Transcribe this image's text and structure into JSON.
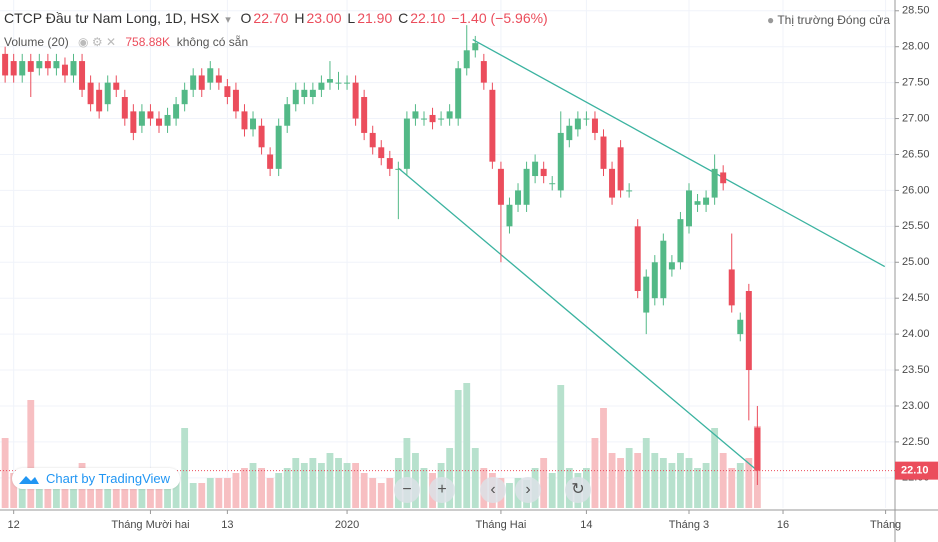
{
  "chart_data": {
    "type": "candlestick",
    "title": "CTCP Đầu tư Nam Long, 1D, HSX",
    "ohlc_legend": [
      {
        "key": "O",
        "value": "22.70"
      },
      {
        "key": "H",
        "value": "23.00"
      },
      {
        "key": "L",
        "value": "21.90"
      },
      {
        "key": "C",
        "value": "22.10"
      }
    ],
    "change_label": "−1.40 (−5.96%)",
    "volume_title": "Volume (20)",
    "volume_label": "758.88K",
    "volume_ma_label": "không có sẵn",
    "market_status": "Thị trường Đóng cửa",
    "last_price_label": "22.10",
    "branding": "Chart by TradingView",
    "up_color": "#53b987",
    "down_color": "#eb4d5c",
    "volume_up_color": "#b7e1cd",
    "volume_down_color": "#f7bfc2",
    "trendline_color": "#3bb3a0",
    "grid": true,
    "xlim": [
      -0.6,
      104.1
    ],
    "xticks": [
      {
        "value": 1,
        "label": "12"
      },
      {
        "value": 17,
        "label": "Tháng Mười hai"
      },
      {
        "value": 26,
        "label": "13"
      },
      {
        "value": 40,
        "label": "2020"
      },
      {
        "value": 58,
        "label": "Tháng Hai"
      },
      {
        "value": 68,
        "label": "14"
      },
      {
        "value": 80,
        "label": "Tháng 3"
      },
      {
        "value": 91,
        "label": "16"
      },
      {
        "value": 103,
        "label": "Tháng"
      }
    ],
    "ylim": [
      21.58,
      28.65
    ],
    "yticks": [
      {
        "value": 22,
        "label": "22.00"
      },
      {
        "value": 22.5,
        "label": "22.50"
      },
      {
        "value": 23,
        "label": "23.00"
      },
      {
        "value": 23.5,
        "label": "23.50"
      },
      {
        "value": 24,
        "label": "24.00"
      },
      {
        "value": 24.5,
        "label": "24.50"
      },
      {
        "value": 25,
        "label": "25.00"
      },
      {
        "value": 25.5,
        "label": "25.50"
      },
      {
        "value": 26,
        "label": "26.00"
      },
      {
        "value": 26.5,
        "label": "26.50"
      },
      {
        "value": 27,
        "label": "27.00"
      },
      {
        "value": 27.5,
        "label": "27.50"
      },
      {
        "value": 28,
        "label": "28.00"
      },
      {
        "value": 28.5,
        "label": "28.50"
      }
    ],
    "open": [
      27.9,
      27.8,
      27.6,
      27.8,
      27.7,
      27.8,
      27.7,
      27.75,
      27.6,
      27.8,
      27.5,
      27.4,
      27.2,
      27.5,
      27.3,
      27.1,
      26.9,
      27.1,
      27.0,
      26.9,
      27.0,
      27.2,
      27.4,
      27.6,
      27.5,
      27.6,
      27.45,
      27.4,
      27.1,
      26.85,
      26.9,
      26.5,
      26.3,
      26.9,
      27.2,
      27.3,
      27.3,
      27.4,
      27.5,
      27.5,
      27.5,
      27.5,
      27.3,
      26.8,
      26.6,
      26.45,
      26.3,
      26.3,
      27.0,
      27.0,
      27.05,
      27.0,
      27.0,
      27.0,
      27.7,
      27.95,
      27.8,
      27.4,
      26.3,
      25.5,
      25.8,
      25.8,
      26.2,
      26.3,
      26.1,
      26.0,
      26.7,
      26.85,
      27.0,
      27.0,
      26.75,
      26.3,
      26.6,
      26.0,
      25.5,
      24.3,
      24.5,
      24.5,
      24.9,
      25.0,
      25.5,
      25.8,
      25.8,
      25.9,
      26.25,
      24.9,
      24.0,
      24.6,
      22.7
    ],
    "high": [
      28.0,
      27.9,
      27.9,
      27.9,
      27.9,
      27.9,
      27.9,
      27.85,
      27.9,
      27.9,
      27.6,
      27.5,
      27.6,
      27.6,
      27.4,
      27.2,
      27.2,
      27.2,
      27.1,
      27.15,
      27.3,
      27.5,
      27.7,
      27.7,
      27.8,
      27.7,
      27.55,
      27.5,
      27.2,
      27.1,
      27.0,
      26.6,
      27.0,
      27.3,
      27.5,
      27.5,
      27.5,
      27.6,
      27.8,
      27.65,
      27.6,
      27.6,
      27.4,
      26.9,
      26.7,
      26.55,
      26.4,
      27.1,
      27.2,
      27.1,
      27.15,
      27.1,
      27.2,
      27.8,
      28.3,
      28.15,
      27.9,
      27.5,
      26.4,
      25.9,
      26.1,
      26.4,
      26.5,
      26.4,
      26.2,
      27.1,
      27.0,
      27.1,
      27.1,
      27.1,
      26.85,
      26.4,
      26.7,
      26.1,
      25.6,
      24.9,
      25.1,
      25.4,
      25.1,
      25.7,
      26.1,
      25.95,
      26.0,
      26.5,
      26.35,
      25.4,
      24.3,
      24.7,
      23.0
    ],
    "low": [
      27.5,
      27.5,
      27.5,
      27.3,
      27.6,
      27.6,
      27.6,
      27.5,
      27.5,
      27.3,
      27.1,
      27.0,
      27.1,
      27.3,
      26.9,
      26.7,
      26.8,
      26.9,
      26.8,
      26.8,
      26.9,
      27.1,
      27.3,
      27.3,
      27.4,
      27.4,
      27.2,
      27.0,
      26.75,
      26.75,
      26.5,
      26.2,
      26.2,
      26.8,
      27.1,
      27.2,
      27.2,
      27.3,
      27.4,
      27.4,
      27.4,
      26.9,
      26.7,
      26.5,
      26.35,
      26.2,
      25.6,
      26.2,
      26.9,
      26.9,
      26.85,
      26.9,
      26.9,
      26.9,
      27.6,
      27.85,
      27.4,
      26.3,
      25.0,
      25.4,
      25.7,
      25.7,
      26.1,
      26.1,
      26.0,
      25.9,
      26.6,
      26.75,
      26.9,
      26.7,
      26.2,
      25.8,
      25.9,
      25.9,
      24.5,
      24.0,
      24.4,
      24.4,
      24.8,
      24.9,
      25.4,
      25.7,
      25.7,
      25.8,
      26.0,
      24.3,
      23.9,
      22.8,
      21.9
    ],
    "close": [
      27.6,
      27.6,
      27.8,
      27.65,
      27.8,
      27.7,
      27.8,
      27.6,
      27.8,
      27.4,
      27.2,
      27.1,
      27.5,
      27.4,
      27.0,
      26.8,
      27.1,
      27.0,
      26.9,
      27.05,
      27.2,
      27.4,
      27.6,
      27.4,
      27.7,
      27.5,
      27.3,
      27.1,
      26.85,
      27.0,
      26.6,
      26.3,
      26.9,
      27.2,
      27.4,
      27.4,
      27.4,
      27.5,
      27.55,
      27.5,
      27.5,
      27.0,
      26.8,
      26.6,
      26.45,
      26.3,
      26.3,
      27.0,
      27.1,
      27.0,
      26.95,
      27.0,
      27.1,
      27.7,
      27.95,
      28.05,
      27.5,
      26.4,
      25.8,
      25.8,
      26.0,
      26.3,
      26.4,
      26.2,
      26.1,
      26.8,
      26.9,
      27.0,
      27.0,
      26.8,
      26.3,
      25.9,
      26.0,
      26.0,
      24.6,
      24.8,
      25.0,
      25.3,
      25.0,
      25.6,
      26.0,
      25.85,
      25.9,
      26.3,
      26.1,
      24.4,
      24.2,
      23.5,
      22.1
    ],
    "volume": [
      647500,
      323750,
      277500,
      999000,
      323750,
      277500,
      231250,
      323750,
      370000,
      416250,
      231250,
      277500,
      231250,
      277500,
      277500,
      277500,
      323750,
      323750,
      277500,
      277500,
      277500,
      740000,
      231250,
      231250,
      277500,
      277500,
      277500,
      323750,
      370000,
      416250,
      370000,
      277500,
      323750,
      370000,
      462500,
      416250,
      462500,
      416250,
      508750,
      462500,
      416250,
      416250,
      323750,
      277500,
      231250,
      277500,
      462500,
      647500,
      508750,
      370000,
      323750,
      416250,
      555000,
      1091500,
      1156250,
      555000,
      370000,
      323750,
      277500,
      231250,
      277500,
      259000,
      370000,
      462500,
      323750,
      1137750,
      370000,
      323750,
      370000,
      647500,
      925000,
      508750,
      462500,
      555000,
      508750,
      647500,
      508750,
      462500,
      416250,
      508750,
      462500,
      370000,
      416250,
      740000,
      508750,
      370000,
      416250,
      462500,
      758880
    ],
    "trendlines": [
      {
        "x": [
          54.7,
          102.9
        ],
        "y": [
          28.1,
          24.94
        ]
      },
      {
        "x": [
          46,
          88
        ],
        "y": [
          26.31,
          22.1
        ]
      }
    ]
  }
}
